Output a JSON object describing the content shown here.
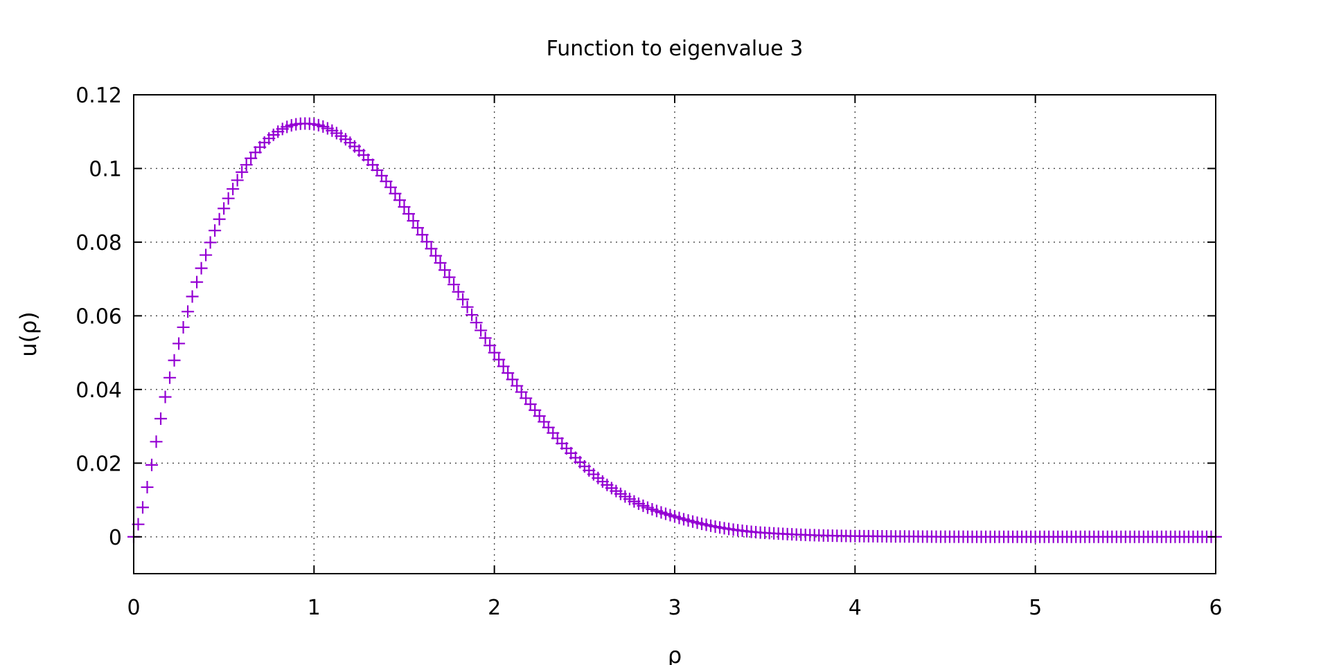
{
  "chart_data": {
    "type": "scatter",
    "title": "Function to eigenvalue 3",
    "xlabel": "ρ",
    "ylabel": "u(ρ)",
    "xlim": [
      0,
      6
    ],
    "ylim": [
      -0.01,
      0.12
    ],
    "xticks": [
      "0",
      "1",
      "2",
      "3",
      "4",
      "5",
      "6"
    ],
    "xtick_values": [
      0,
      1,
      2,
      3,
      4,
      5,
      6
    ],
    "yticks": [
      "0",
      "0.02",
      "0.04",
      "0.06",
      "0.08",
      "0.1",
      "0.12"
    ],
    "ytick_values": [
      0,
      0.02,
      0.04,
      0.06,
      0.08,
      0.1,
      0.12
    ],
    "grid": true,
    "marker": "plus",
    "series": [
      {
        "color": "#9400d3",
        "x": [
          0.0,
          0.2,
          0.4,
          0.6,
          0.8,
          1.0,
          1.2,
          1.4,
          1.6,
          1.8,
          2.0,
          2.2,
          2.4,
          2.6,
          2.8,
          3.0,
          3.2,
          3.4,
          3.6,
          3.8,
          4.0,
          4.4,
          4.8,
          5.2,
          5.6,
          6.0
        ],
        "y": [
          0.0,
          0.0432,
          0.0765,
          0.099,
          0.11,
          0.112,
          0.107,
          0.0965,
          0.082,
          0.0665,
          0.05,
          0.036,
          0.024,
          0.015,
          0.009,
          0.0055,
          0.003,
          0.0015,
          0.0008,
          0.0004,
          0.0002,
          5e-05,
          0.0,
          0.0,
          0.0,
          0.0
        ]
      }
    ]
  }
}
